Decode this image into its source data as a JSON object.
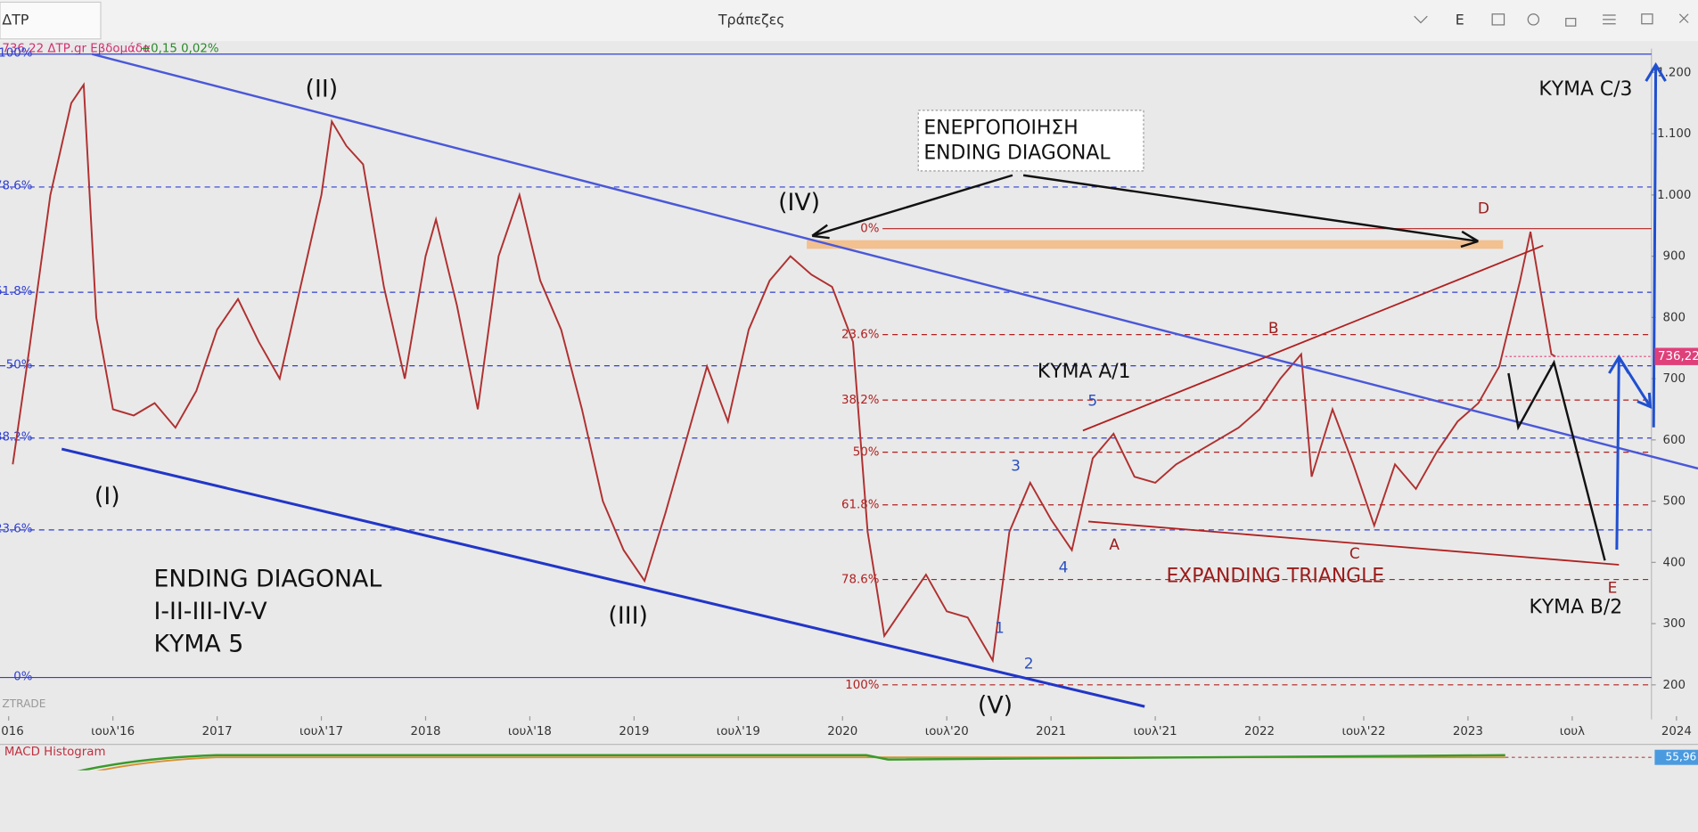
{
  "header": {
    "tab": "ΔΤΡ",
    "title": "Τράπεζες",
    "menu": "E"
  },
  "chart_data": {
    "type": "line",
    "info": {
      "symbol": "736,22 ΔΤΡ.gr Εβδομάδα",
      "change": "+0,15 0,02%"
    },
    "x": [
      2016.02,
      2016.1,
      2016.2,
      2016.3,
      2016.36,
      2016.42,
      2016.5,
      2016.6,
      2016.7,
      2016.8,
      2016.9,
      2017.0,
      2017.1,
      2017.2,
      2017.3,
      2017.4,
      2017.5,
      2017.55,
      2017.62,
      2017.7,
      2017.8,
      2017.9,
      2018.0,
      2018.05,
      2018.15,
      2018.25,
      2018.35,
      2018.45,
      2018.55,
      2018.65,
      2018.75,
      2018.85,
      2018.95,
      2019.05,
      2019.15,
      2019.25,
      2019.35,
      2019.45,
      2019.55,
      2019.65,
      2019.75,
      2019.85,
      2019.95,
      2020.05,
      2020.12,
      2020.2,
      2020.3,
      2020.4,
      2020.5,
      2020.6,
      2020.72,
      2020.8,
      2020.9,
      2021.0,
      2021.1,
      2021.2,
      2021.3,
      2021.4,
      2021.5,
      2021.6,
      2021.7,
      2021.8,
      2021.9,
      2022.0,
      2022.1,
      2022.2,
      2022.25,
      2022.35,
      2022.45,
      2022.55,
      2022.65,
      2022.75,
      2022.85,
      2022.95,
      2023.05,
      2023.15,
      2023.25,
      2023.3,
      2023.4,
      2023.42
    ],
    "values": [
      560,
      750,
      1000,
      1150,
      1180,
      800,
      650,
      640,
      660,
      620,
      680,
      780,
      830,
      760,
      700,
      850,
      1000,
      1120,
      1080,
      1050,
      850,
      700,
      900,
      960,
      820,
      650,
      900,
      1000,
      860,
      780,
      650,
      500,
      420,
      370,
      480,
      600,
      720,
      630,
      780,
      860,
      900,
      870,
      850,
      760,
      450,
      280,
      330,
      380,
      320,
      310,
      240,
      450,
      530,
      470,
      420,
      570,
      610,
      540,
      530,
      560,
      580,
      600,
      620,
      650,
      700,
      740,
      540,
      650,
      560,
      460,
      560,
      520,
      580,
      630,
      660,
      720,
      860,
      940,
      740,
      736
    ],
    "color": "#b03030",
    "xlim": [
      2015.96,
      2023.88
    ],
    "xticks": [
      2016,
      {
        "value": 2016.5,
        "label": "ιουλ'16"
      },
      2017,
      {
        "value": 2017.5,
        "label": "ιουλ'17"
      },
      2018,
      {
        "value": 2018.5,
        "label": "ιουλ'18"
      },
      2019,
      {
        "value": 2019.5,
        "label": "ιουλ'19"
      },
      2020,
      {
        "value": 2020.5,
        "label": "ιουλ'20"
      },
      2021,
      {
        "value": 2021.5,
        "label": "ιουλ'21"
      },
      2022,
      {
        "value": 2022.5,
        "label": "ιουλ'22"
      },
      2023,
      {
        "value": 2023.5,
        "label": "ιουλ"
      },
      2024
    ],
    "ylim": [
      150,
      1240
    ],
    "yticks": [
      200,
      300,
      400,
      500,
      600,
      700,
      800,
      900,
      {
        "value": 1000,
        "label": "1.000"
      },
      {
        "value": 1100,
        "label": "1.100"
      },
      {
        "value": 1200,
        "label": "1.200"
      }
    ],
    "last_price": {
      "value": 736.22,
      "label": "736,22"
    },
    "fib_blue": [
      {
        "value": 1230,
        "label": "100%"
      },
      {
        "value": 1013,
        "label": "78.6%"
      },
      {
        "value": 841,
        "label": "61.8%"
      },
      {
        "value": 721,
        "label": "50%"
      },
      {
        "value": 603,
        "label": "38.2%"
      },
      {
        "value": 453,
        "label": "23.6%"
      },
      {
        "value": 212,
        "label": "0%"
      }
    ],
    "fib_red": [
      {
        "value": 945,
        "label": "0%"
      },
      {
        "value": 772,
        "label": "23.6%"
      },
      {
        "value": 665,
        "label": "38.2%"
      },
      {
        "value": 580,
        "label": "50%"
      },
      {
        "value": 494,
        "label": "61.8%"
      },
      {
        "value": 372,
        "label": "78.6%"
      },
      {
        "value": 200,
        "label": "100%"
      }
    ],
    "annotations": {
      "w1": "(I)",
      "w2": "(II)",
      "w3": "(III)",
      "w4": "(IV)",
      "w5": "(V)",
      "ed1": "ENDING DIAGONAL",
      "ed2": "I-II-III-IV-V",
      "ed3": "ΚΥΜΑ 5",
      "box1": "ΕΝΕΡΓΟΠΟΙΗΣΗ",
      "box2": "ENDING DIAGONAL",
      "a1": "ΚΥΜΑ Α/1",
      "b2": "ΚΥΜΑ Β/2",
      "c3": "ΚΥΜΑ C/3",
      "tri": "EXPANDING TRIANGLE",
      "A": "A",
      "B": "B",
      "C": "C",
      "D": "D",
      "E": "E",
      "n1": "1",
      "n2": "2",
      "n3": "3",
      "n4": "4",
      "n5": "5"
    },
    "watermark": "ZTRADE",
    "indicator": {
      "name": "MACD Histogram",
      "value": "55,96"
    }
  }
}
